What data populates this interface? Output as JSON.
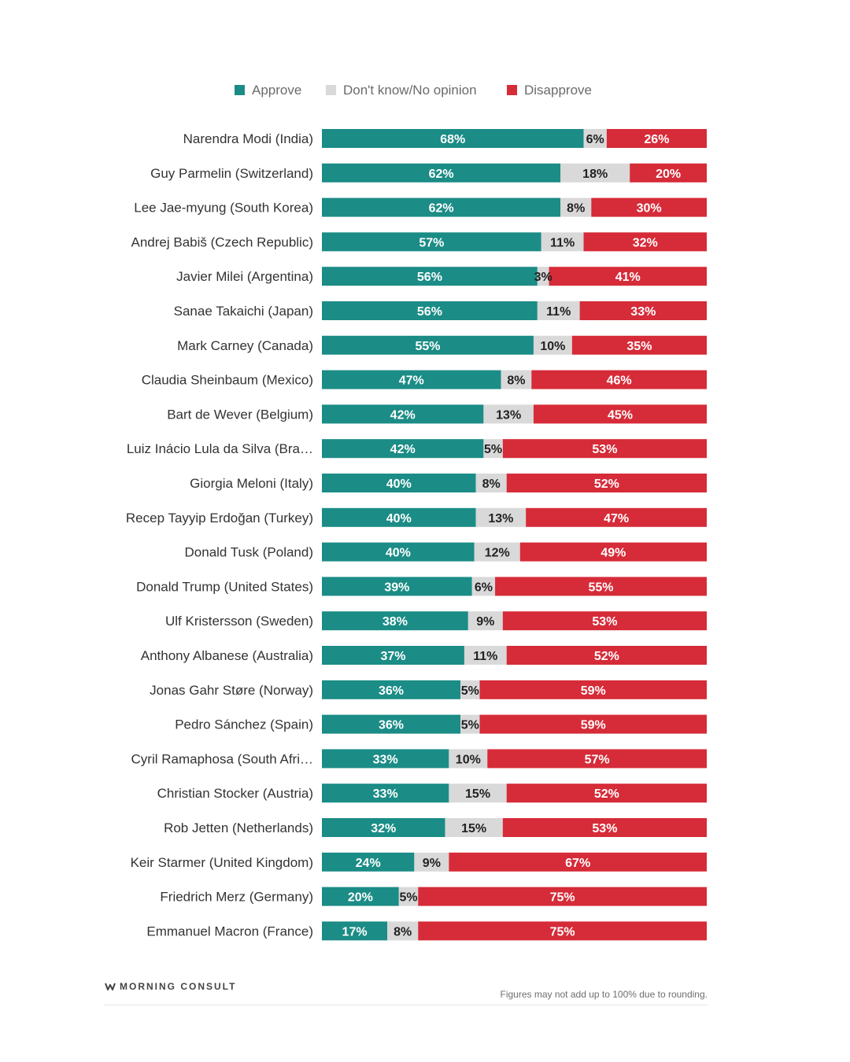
{
  "chart_data": {
    "type": "bar",
    "orientation": "horizontal",
    "stacked": true,
    "legend_position": "top",
    "series": [
      {
        "name": "Approve",
        "color": "#1b8c86"
      },
      {
        "name": "Don't know/No opinion",
        "color": "#d9d9d9"
      },
      {
        "name": "Disapprove",
        "color": "#d62b38"
      }
    ],
    "rows": [
      {
        "label": "Narendra Modi (India)",
        "approve": 68,
        "dont_know": 6,
        "disapprove": 26
      },
      {
        "label": "Guy Parmelin (Switzerland)",
        "approve": 62,
        "dont_know": 18,
        "disapprove": 20
      },
      {
        "label": "Lee Jae-myung (South Korea)",
        "approve": 62,
        "dont_know": 8,
        "disapprove": 30
      },
      {
        "label": "Andrej Babiš (Czech Republic)",
        "approve": 57,
        "dont_know": 11,
        "disapprove": 32
      },
      {
        "label": "Javier Milei (Argentina)",
        "approve": 56,
        "dont_know": 3,
        "disapprove": 41
      },
      {
        "label": "Sanae Takaichi (Japan)",
        "approve": 56,
        "dont_know": 11,
        "disapprove": 33
      },
      {
        "label": "Mark Carney (Canada)",
        "approve": 55,
        "dont_know": 10,
        "disapprove": 35
      },
      {
        "label": "Claudia Sheinbaum (Mexico)",
        "approve": 47,
        "dont_know": 8,
        "disapprove": 46
      },
      {
        "label": "Bart de Wever (Belgium)",
        "approve": 42,
        "dont_know": 13,
        "disapprove": 45
      },
      {
        "label": "Luiz Inácio Lula da Silva (Bra…",
        "approve": 42,
        "dont_know": 5,
        "disapprove": 53
      },
      {
        "label": "Giorgia Meloni (Italy)",
        "approve": 40,
        "dont_know": 8,
        "disapprove": 52
      },
      {
        "label": "Recep Tayyip Erdoğan (Turkey)",
        "approve": 40,
        "dont_know": 13,
        "disapprove": 47
      },
      {
        "label": "Donald Tusk (Poland)",
        "approve": 40,
        "dont_know": 12,
        "disapprove": 49
      },
      {
        "label": "Donald Trump (United States)",
        "approve": 39,
        "dont_know": 6,
        "disapprove": 55
      },
      {
        "label": "Ulf Kristersson (Sweden)",
        "approve": 38,
        "dont_know": 9,
        "disapprove": 53
      },
      {
        "label": "Anthony Albanese (Australia)",
        "approve": 37,
        "dont_know": 11,
        "disapprove": 52
      },
      {
        "label": "Jonas Gahr Støre (Norway)",
        "approve": 36,
        "dont_know": 5,
        "disapprove": 59
      },
      {
        "label": "Pedro Sánchez (Spain)",
        "approve": 36,
        "dont_know": 5,
        "disapprove": 59
      },
      {
        "label": "Cyril Ramaphosa (South Afri…",
        "approve": 33,
        "dont_know": 10,
        "disapprove": 57
      },
      {
        "label": "Christian Stocker (Austria)",
        "approve": 33,
        "dont_know": 15,
        "disapprove": 52
      },
      {
        "label": "Rob Jetten (Netherlands)",
        "approve": 32,
        "dont_know": 15,
        "disapprove": 53
      },
      {
        "label": "Keir Starmer (United Kingdom)",
        "approve": 24,
        "dont_know": 9,
        "disapprove": 67
      },
      {
        "label": "Friedrich Merz (Germany)",
        "approve": 20,
        "dont_know": 5,
        "disapprove": 75
      },
      {
        "label": "Emmanuel Macron (France)",
        "approve": 17,
        "dont_know": 8,
        "disapprove": 75
      }
    ],
    "value_suffix": "%"
  },
  "footer": {
    "brand": "MORNING CONSULT",
    "note": "Figures may not add up to 100% due to rounding."
  }
}
